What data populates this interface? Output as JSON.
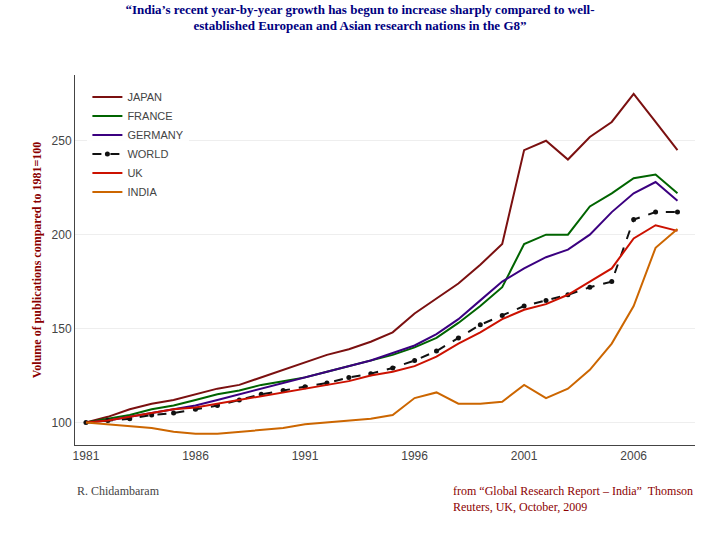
{
  "chart_data": {
    "type": "line",
    "title": "“India’s recent year-by-year growth has begun to increase sharply compared to well-\nestablished European and Asian research nations in the G8”",
    "y_label": "Volume of publications compared to 1981=100",
    "annotations": [
      "R. Chidambaram",
      "from “Global Research Report – India”  Thomson\nReuters, UK, October, 2009"
    ],
    "x": [
      1981,
      1982,
      1983,
      1984,
      1985,
      1986,
      1987,
      1988,
      1989,
      1990,
      1991,
      1992,
      1993,
      1994,
      1995,
      1996,
      1997,
      1998,
      1999,
      2000,
      2001,
      2002,
      2003,
      2004,
      2005,
      2006,
      2007,
      2008
    ],
    "series": [
      {
        "name": "JAPAN",
        "color": "#7B1010",
        "values": [
          100,
          103,
          107,
          110,
          112,
          115,
          118,
          120,
          124,
          128,
          132,
          136,
          139,
          143,
          148,
          158,
          166,
          174,
          184,
          195,
          245,
          250,
          240,
          252,
          260,
          275,
          260,
          245
        ]
      },
      {
        "name": "FRANCE",
        "color": "#006400",
        "values": [
          100,
          102,
          104,
          107,
          109,
          112,
          115,
          117,
          120,
          122,
          124,
          127,
          130,
          133,
          136,
          140,
          145,
          153,
          162,
          172,
          195,
          200,
          200,
          215,
          222,
          230,
          232,
          222
        ]
      },
      {
        "name": "GERMANY",
        "color": "#3B0080",
        "values": [
          100,
          101,
          103,
          105,
          107,
          109,
          112,
          115,
          118,
          121,
          124,
          127,
          130,
          133,
          137,
          141,
          147,
          155,
          165,
          175,
          182,
          188,
          192,
          200,
          212,
          222,
          228,
          218
        ]
      },
      {
        "name": "WORLD",
        "color": "#111111",
        "line_style": "dashed",
        "marker": "dot",
        "values": [
          100,
          101,
          102,
          104,
          105,
          107,
          109,
          112,
          115,
          117,
          119,
          121,
          124,
          126,
          129,
          133,
          138,
          145,
          152,
          157,
          162,
          165,
          168,
          172,
          175,
          208,
          212,
          212
        ]
      },
      {
        "name": "UK",
        "color": "#CC1100",
        "values": [
          100,
          101,
          103,
          105,
          107,
          108,
          110,
          112,
          114,
          116,
          118,
          120,
          122,
          125,
          127,
          130,
          135,
          142,
          148,
          155,
          160,
          163,
          168,
          175,
          182,
          198,
          205,
          202
        ]
      },
      {
        "name": "INDIA",
        "color": "#CC6600",
        "values": [
          100,
          99,
          98,
          97,
          95,
          94,
          94,
          95,
          96,
          97,
          99,
          100,
          101,
          102,
          104,
          113,
          116,
          110,
          110,
          111,
          120,
          113,
          118,
          128,
          142,
          162,
          193,
          203
        ]
      }
    ],
    "xlim": [
      1980.5,
      2008.8
    ],
    "ylim": [
      88,
      285
    ],
    "xticks": [
      1981,
      1986,
      1991,
      1996,
      2001,
      2006
    ],
    "yticks": [
      100,
      150,
      200,
      250
    ],
    "grid": true,
    "legend": "upper left"
  }
}
